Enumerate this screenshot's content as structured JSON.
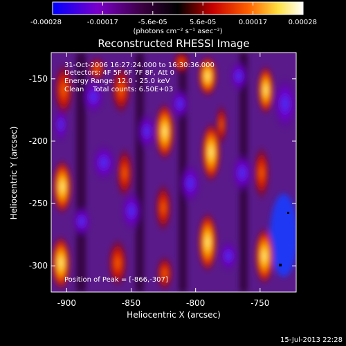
{
  "chart_data": {
    "type": "heatmap",
    "title": "Reconstructed RHESSI Image",
    "xlabel": "Heliocentric X (arcsec)",
    "ylabel": "Heliocentric Y (arcsec)",
    "xlim": [
      -912,
      -722
    ],
    "ylim": [
      -321,
      -129
    ],
    "xticks": [
      -900,
      -850,
      -800,
      -750
    ],
    "yticks": [
      -150,
      -200,
      -250,
      -300
    ],
    "colorbar": {
      "min": -0.00028,
      "max": 0.00028,
      "ticks": [
        "-0.00028",
        "-0.00017",
        "-5.6e-05",
        "5.6e-05",
        "0.00017",
        "0.00028"
      ],
      "label": "(photons cm⁻² s⁻¹ asec⁻²)",
      "colormap": [
        "#0000ff",
        "#7a00c8",
        "#3a0040",
        "#000000",
        "#c80000",
        "#ff6000",
        "#ffe040",
        "#ffffff"
      ]
    },
    "info_lines": [
      "31-Oct-2006 16:27:24.000 to 16:30:36.000",
      "Detectors: 4F 5F 6F 7F 8F, Att 0",
      "Energy Range: 12.0 - 25.0 keV",
      "Clean    Total counts: 6.50E+03"
    ],
    "peak_label": "Position of Peak = [",
    "peak_value": "-866,-307",
    "peak_end": "]",
    "grid": false
  },
  "footer": {
    "date": "15-Jul-2013 22:28"
  }
}
